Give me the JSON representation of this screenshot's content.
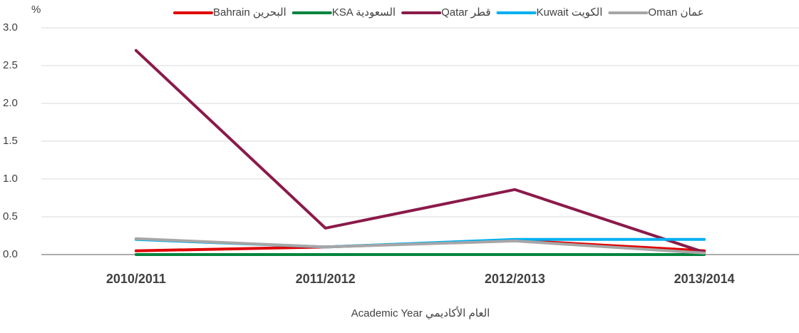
{
  "chart_data": {
    "type": "line",
    "y_unit": "%",
    "x_label": "Academic Year  العام الأكاديمي",
    "categories": [
      "2010/2011",
      "2011/2012",
      "2012/2013",
      "2013/2014"
    ],
    "series": [
      {
        "name": "Bahrain البحرين",
        "color": "#e00000",
        "values": [
          0.05,
          0.1,
          0.19,
          0.05
        ]
      },
      {
        "name": "KSA السعودية",
        "color": "#00843d",
        "values": [
          0,
          0,
          0,
          0
        ]
      },
      {
        "name": "Qatar قطر",
        "color": "#8b1a4a",
        "values": [
          2.7,
          0.35,
          0.86,
          0.03
        ]
      },
      {
        "name": "Kuwait الكويت",
        "color": "#00b0f0",
        "values": [
          0.2,
          0.1,
          0.2,
          0.2
        ]
      },
      {
        "name": "Oman عمان",
        "color": "#a6a6a6",
        "values": [
          0.21,
          0.1,
          0.18,
          0.02
        ]
      }
    ],
    "ylim": [
      0,
      3
    ],
    "yticks": [
      {
        "value": 0,
        "label": "0.0"
      },
      0.5,
      {
        "value": 1,
        "label": "1.0"
      },
      1.5,
      {
        "value": 2,
        "label": "2.0"
      },
      2.5,
      {
        "value": 3,
        "label": "3.0"
      }
    ],
    "grid": true
  }
}
